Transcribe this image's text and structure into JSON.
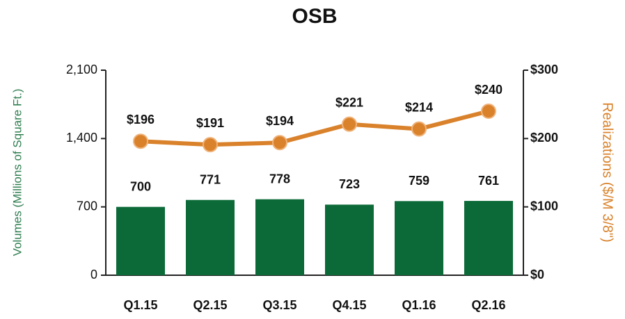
{
  "chart_data": {
    "type": "bar_line",
    "title": "OSB",
    "categories": [
      "Q1.15",
      "Q2.15",
      "Q3.15",
      "Q4.15",
      "Q1.16",
      "Q2.16"
    ],
    "series": [
      {
        "type": "bar",
        "color": "#0b6a38",
        "values": [
          700,
          771,
          778,
          723,
          759,
          761
        ]
      },
      {
        "type": "line",
        "axis": "y2",
        "color": "#d9822b",
        "values": [
          196,
          191,
          194,
          221,
          214,
          240
        ],
        "value_labels": [
          "$196",
          "$191",
          "$194",
          "$221",
          "$214",
          "$240"
        ]
      }
    ],
    "y_label": "Volumes (Millions of Square Ft.)",
    "y2_label": "Realizations ($/M 3/8\")",
    "ylim": [
      0,
      2100
    ],
    "yticks": [
      0,
      700,
      {
        "value": 1400,
        "label": "1,400"
      },
      {
        "value": 2100,
        "label": "2,100"
      }
    ],
    "y2lim": [
      0,
      300
    ],
    "y2ticks": [
      {
        "value": 0,
        "label": "$0"
      },
      {
        "value": 100,
        "label": "$100"
      },
      {
        "value": 200,
        "label": "$200"
      },
      {
        "value": 300,
        "label": "$300"
      }
    ]
  }
}
